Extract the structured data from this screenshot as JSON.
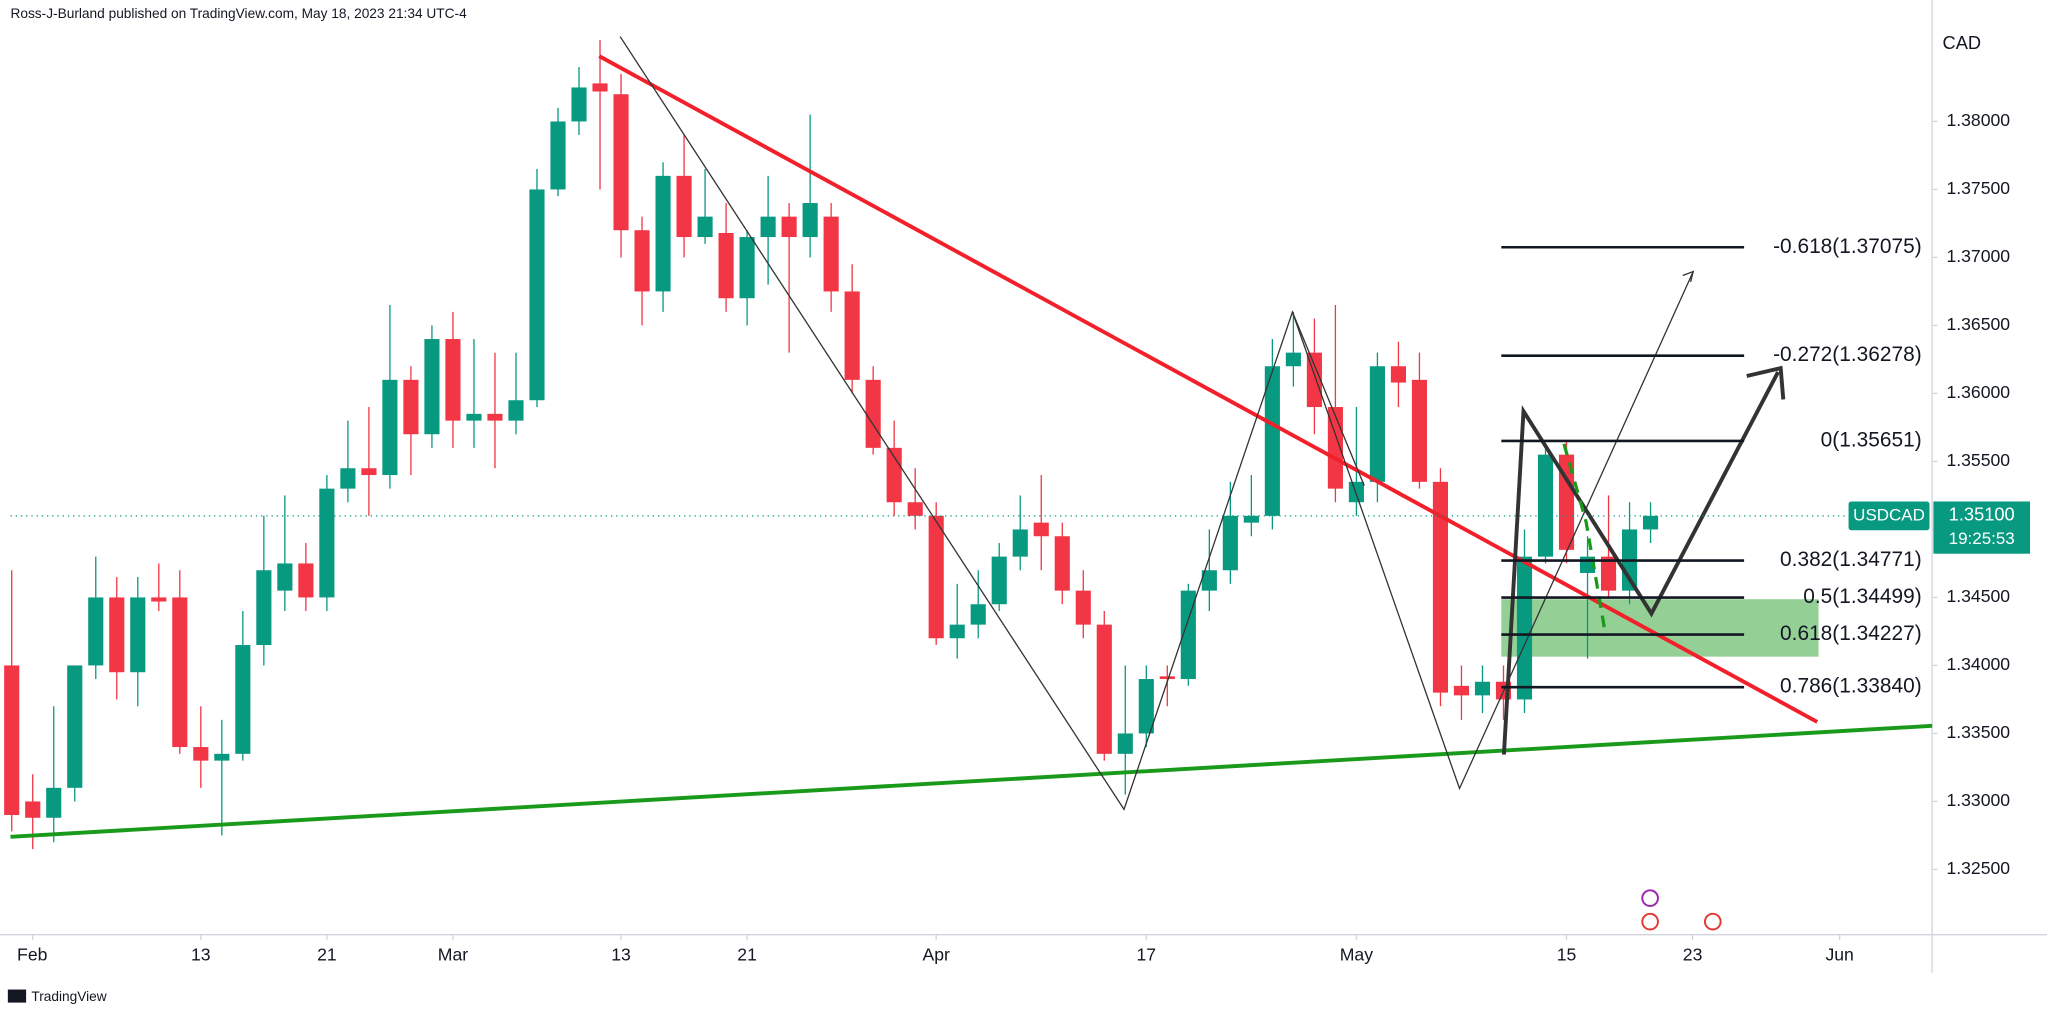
{
  "chart_data": {
    "type": "candlestick",
    "header": "Ross-J-Burland published on TradingView.com, May 18, 2023 21:34 UTC-4",
    "currency": "CAD",
    "symbol": "USDCAD",
    "countdown": "19:25:53",
    "brand": "TradingView",
    "up_color": "#089981",
    "down_color": "#f23645",
    "x": [
      "2023-01-31",
      "2023-02-01",
      "2023-02-02",
      "2023-02-03",
      "2023-02-06",
      "2023-02-07",
      "2023-02-08",
      "2023-02-09",
      "2023-02-10",
      "2023-02-13",
      "2023-02-14",
      "2023-02-15",
      "2023-02-16",
      "2023-02-17",
      "2023-02-20",
      "2023-02-21",
      "2023-02-22",
      "2023-02-23",
      "2023-02-24",
      "2023-02-27",
      "2023-02-28",
      "2023-03-01",
      "2023-03-02",
      "2023-03-03",
      "2023-03-06",
      "2023-03-07",
      "2023-03-08",
      "2023-03-09",
      "2023-03-10",
      "2023-03-13",
      "2023-03-14",
      "2023-03-15",
      "2023-03-16",
      "2023-03-17",
      "2023-03-20",
      "2023-03-21",
      "2023-03-22",
      "2023-03-23",
      "2023-03-24",
      "2023-03-27",
      "2023-03-28",
      "2023-03-29",
      "2023-03-30",
      "2023-03-31",
      "2023-04-03",
      "2023-04-04",
      "2023-04-05",
      "2023-04-06",
      "2023-04-07",
      "2023-04-10",
      "2023-04-11",
      "2023-04-12",
      "2023-04-13",
      "2023-04-14",
      "2023-04-17",
      "2023-04-18",
      "2023-04-19",
      "2023-04-20",
      "2023-04-21",
      "2023-04-24",
      "2023-04-25",
      "2023-04-26",
      "2023-04-27",
      "2023-04-28",
      "2023-05-01",
      "2023-05-02",
      "2023-05-03",
      "2023-05-04",
      "2023-05-05",
      "2023-05-08",
      "2023-05-09",
      "2023-05-10",
      "2023-05-11",
      "2023-05-12",
      "2023-05-15",
      "2023-05-16",
      "2023-05-17",
      "2023-05-18",
      "2023-05-19"
    ],
    "open": [
      1.34,
      1.33,
      1.3288,
      1.331,
      1.34,
      1.345,
      1.3395,
      1.345,
      1.345,
      1.334,
      1.333,
      1.3335,
      1.3415,
      1.3455,
      1.3475,
      1.345,
      1.353,
      1.3545,
      1.354,
      1.361,
      1.357,
      1.364,
      1.358,
      1.3585,
      1.358,
      1.3595,
      1.375,
      1.38,
      1.3828,
      1.382,
      1.372,
      1.3675,
      1.376,
      1.3715,
      1.3718,
      1.367,
      1.3715,
      1.373,
      1.3715,
      1.373,
      1.3675,
      1.361,
      1.356,
      1.352,
      1.351,
      1.342,
      1.343,
      1.3445,
      1.348,
      1.3505,
      1.3495,
      1.3455,
      1.343,
      1.3335,
      1.335,
      1.3392,
      1.339,
      1.3455,
      1.347,
      1.3505,
      1.351,
      1.362,
      1.363,
      1.359,
      1.352,
      1.3535,
      1.362,
      1.361,
      1.3535,
      1.3385,
      1.3378,
      1.3388,
      1.3375,
      1.348,
      1.3555,
      1.3468,
      1.348,
      1.3455,
      1.35
    ],
    "high": [
      1.347,
      1.332,
      1.337,
      1.34,
      1.348,
      1.3465,
      1.3465,
      1.3475,
      1.347,
      1.337,
      1.336,
      1.344,
      1.351,
      1.3525,
      1.349,
      1.354,
      1.358,
      1.359,
      1.3665,
      1.362,
      1.365,
      1.366,
      1.364,
      1.363,
      1.363,
      1.3765,
      1.381,
      1.384,
      1.386,
      1.3835,
      1.373,
      1.377,
      1.379,
      1.3765,
      1.374,
      1.372,
      1.376,
      1.374,
      1.3805,
      1.374,
      1.3695,
      1.362,
      1.358,
      1.3545,
      1.352,
      1.346,
      1.347,
      1.349,
      1.3525,
      1.354,
      1.3505,
      1.347,
      1.344,
      1.34,
      1.34,
      1.34,
      1.346,
      1.35,
      1.3535,
      1.354,
      1.364,
      1.366,
      1.3655,
      1.3665,
      1.359,
      1.363,
      1.3638,
      1.363,
      1.3545,
      1.34,
      1.34,
      1.34,
      1.35,
      1.356,
      1.3565,
      1.3495,
      1.3525,
      1.352,
      1.352
    ],
    "low": [
      1.3278,
      1.3265,
      1.327,
      1.33,
      1.339,
      1.3375,
      1.337,
      1.344,
      1.3335,
      1.331,
      1.3275,
      1.333,
      1.34,
      1.344,
      1.344,
      1.344,
      1.352,
      1.351,
      1.353,
      1.354,
      1.356,
      1.356,
      1.356,
      1.3545,
      1.357,
      1.359,
      1.3745,
      1.379,
      1.375,
      1.37,
      1.365,
      1.366,
      1.37,
      1.371,
      1.366,
      1.365,
      1.368,
      1.363,
      1.37,
      1.366,
      1.36,
      1.3555,
      1.351,
      1.35,
      1.3415,
      1.3405,
      1.342,
      1.344,
      1.347,
      1.347,
      1.3445,
      1.342,
      1.333,
      1.3305,
      1.334,
      1.337,
      1.3385,
      1.344,
      1.346,
      1.3495,
      1.35,
      1.3605,
      1.357,
      1.352,
      1.351,
      1.352,
      1.359,
      1.353,
      1.337,
      1.336,
      1.3365,
      1.336,
      1.3365,
      1.3475,
      1.3475,
      1.3405,
      1.345,
      1.3445,
      1.349
    ],
    "close": [
      1.329,
      1.3288,
      1.331,
      1.34,
      1.345,
      1.3395,
      1.345,
      1.3447,
      1.334,
      1.333,
      1.3335,
      1.3415,
      1.347,
      1.3475,
      1.345,
      1.353,
      1.3545,
      1.354,
      1.361,
      1.357,
      1.364,
      1.358,
      1.3585,
      1.358,
      1.3595,
      1.375,
      1.38,
      1.3825,
      1.3822,
      1.372,
      1.3675,
      1.376,
      1.3715,
      1.373,
      1.367,
      1.3715,
      1.373,
      1.3715,
      1.374,
      1.3675,
      1.361,
      1.356,
      1.352,
      1.351,
      1.342,
      1.343,
      1.3445,
      1.348,
      1.35,
      1.3495,
      1.3455,
      1.343,
      1.3335,
      1.335,
      1.339,
      1.339,
      1.3455,
      1.347,
      1.351,
      1.351,
      1.362,
      1.363,
      1.359,
      1.353,
      1.3535,
      1.362,
      1.3608,
      1.3535,
      1.338,
      1.3378,
      1.3388,
      1.3375,
      1.348,
      1.3555,
      1.3485,
      1.348,
      1.3455,
      1.35,
      1.351
    ],
    "xlim": [
      -0.06,
      91.4
    ],
    "ylim": [
      1.3202,
      1.38893
    ],
    "xticks": [
      {
        "value": 1,
        "label": "Feb"
      },
      {
        "value": 9,
        "label": "13"
      },
      {
        "value": 15,
        "label": "21"
      },
      {
        "value": 21,
        "label": "Mar"
      },
      {
        "value": 29,
        "label": "13"
      },
      {
        "value": 35,
        "label": "21"
      },
      {
        "value": 44,
        "label": "Apr"
      },
      {
        "value": 54,
        "label": "17"
      },
      {
        "value": 64,
        "label": "May"
      },
      {
        "value": 74,
        "label": "15"
      },
      {
        "value": 80,
        "label": "23"
      },
      {
        "value": 87,
        "label": "Jun"
      }
    ],
    "yticks": [
      {
        "value": 1.325,
        "label": "1.32500"
      },
      {
        "value": 1.33,
        "label": "1.33000"
      },
      {
        "value": 1.335,
        "label": "1.33500"
      },
      {
        "value": 1.34,
        "label": "1.34000"
      },
      {
        "value": 1.345,
        "label": "1.34500"
      },
      {
        "value": 1.35,
        "label": "1.35000"
      },
      {
        "value": 1.355,
        "label": "1.35500"
      },
      {
        "value": 1.36,
        "label": "1.36000"
      },
      {
        "value": 1.365,
        "label": "1.36500"
      },
      {
        "value": 1.37,
        "label": "1.37000"
      },
      {
        "value": 1.375,
        "label": "1.37500"
      },
      {
        "value": 1.38,
        "label": "1.38000"
      }
    ],
    "last_price": {
      "value": 1.351,
      "label": "1.35100"
    },
    "fib_levels": [
      {
        "value": 1.37075,
        "label": "-0.618(1.37075)"
      },
      {
        "value": 1.36278,
        "label": "-0.272(1.36278)"
      },
      {
        "value": 1.35651,
        "label": "0(1.35651)"
      },
      {
        "value": 1.34771,
        "label": "0.382(1.34771)"
      },
      {
        "value": 1.34499,
        "label": "0.5(1.34499)"
      },
      {
        "value": 1.34227,
        "label": "0.618(1.34227)"
      },
      {
        "value": 1.3384,
        "label": "0.786(1.33840)"
      }
    ]
  }
}
